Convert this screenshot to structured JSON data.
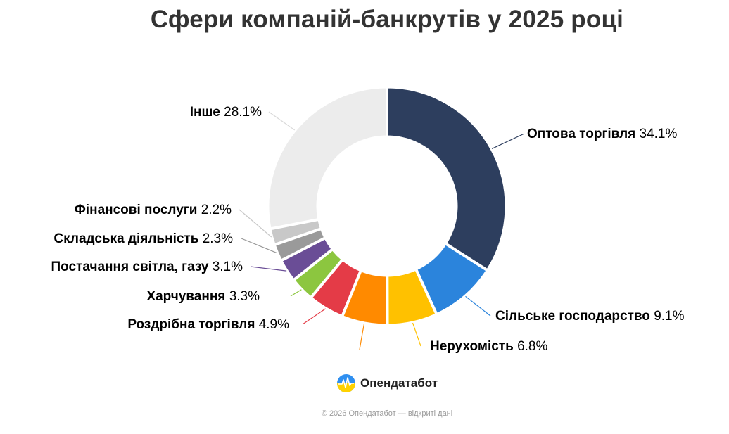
{
  "brand": {
    "name": "Опендатабот"
  },
  "footer": {
    "text": "© 2026 Опендатабот — відкриті дані"
  },
  "chart_data": {
    "type": "pie",
    "title": "Сфери компаній-банкрутів у 2025 році",
    "style": "donut",
    "slices": [
      {
        "name": "Оптова торгівля",
        "value": 34.1,
        "label": "34.1%",
        "color": "#2d3e5e"
      },
      {
        "name": "Сільське господарство",
        "value": 9.1,
        "label": "9.1%",
        "color": "#2b84dc"
      },
      {
        "name": "Нерухомість",
        "value": 6.8,
        "label": "6.8%",
        "color": "#ffc100"
      },
      {
        "name": "",
        "value": 6.2,
        "label": "",
        "color": "#ff8a00"
      },
      {
        "name": "Роздрібна торгівля",
        "value": 4.9,
        "label": "4.9%",
        "color": "#e43b47"
      },
      {
        "name": "Харчування",
        "value": 3.3,
        "label": "3.3%",
        "color": "#8cc63f"
      },
      {
        "name": "Постачання світла, газу",
        "value": 3.1,
        "label": "3.1%",
        "color": "#6a4d96"
      },
      {
        "name": "Складська діяльність",
        "value": 2.3,
        "label": "2.3%",
        "color": "#9a9a9a"
      },
      {
        "name": "Фінансові послуги",
        "value": 2.2,
        "label": "2.2%",
        "color": "#c8c8c8"
      },
      {
        "name": "Інше",
        "value": 28.1,
        "label": "28.1%",
        "color": "#ececec"
      }
    ]
  }
}
